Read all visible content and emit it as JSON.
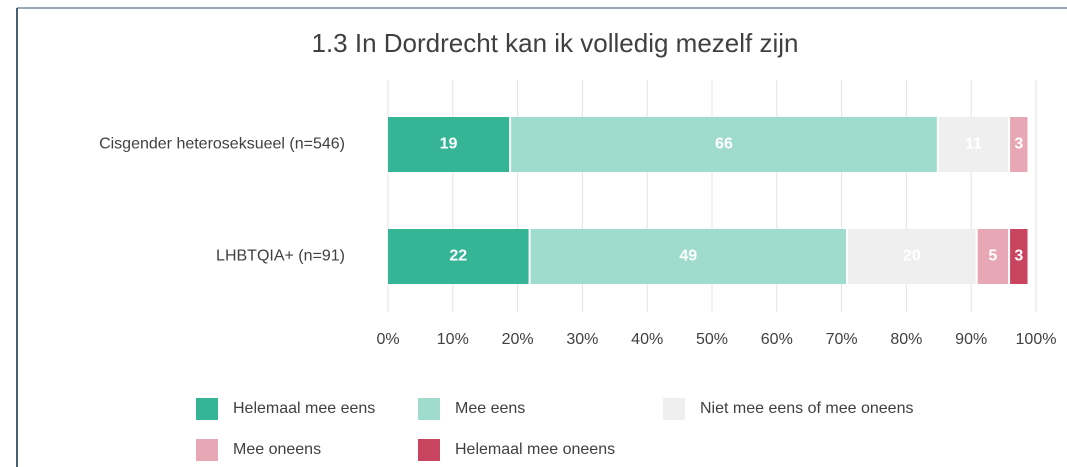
{
  "chart_data": {
    "type": "stacked-bar-horizontal",
    "title": "1.3 In Dordrecht kan ik volledig mezelf zijn",
    "categories": [
      "Cisgender heteroseksueel (n=546)",
      "LHBTQIA+ (n=91)"
    ],
    "series": [
      {
        "name": "Helemaal mee eens",
        "color": "#35b595",
        "values": [
          19,
          22
        ]
      },
      {
        "name": "Mee eens",
        "color": "#9fdccd",
        "values": [
          66,
          49
        ]
      },
      {
        "name": "Niet mee eens of mee oneens",
        "color": "#efefef",
        "values": [
          11,
          20
        ]
      },
      {
        "name": "Mee oneens",
        "color": "#e8a7b4",
        "values": [
          3,
          5
        ]
      },
      {
        "name": "Helemaal mee oneens",
        "color": "#c9445f",
        "values": [
          0,
          3
        ]
      }
    ],
    "xlim": [
      0,
      100
    ],
    "xticks": [
      {
        "value": 0,
        "label": "0%"
      },
      {
        "value": 10,
        "label": "10%"
      },
      {
        "value": 20,
        "label": "20%"
      },
      {
        "value": 30,
        "label": "30%"
      },
      {
        "value": 40,
        "label": "40%"
      },
      {
        "value": 50,
        "label": "50%"
      },
      {
        "value": 60,
        "label": "60%"
      },
      {
        "value": 70,
        "label": "70%"
      },
      {
        "value": 80,
        "label": "80%"
      },
      {
        "value": 90,
        "label": "90%"
      },
      {
        "value": 100,
        "label": "100%"
      }
    ],
    "grid": true
  }
}
